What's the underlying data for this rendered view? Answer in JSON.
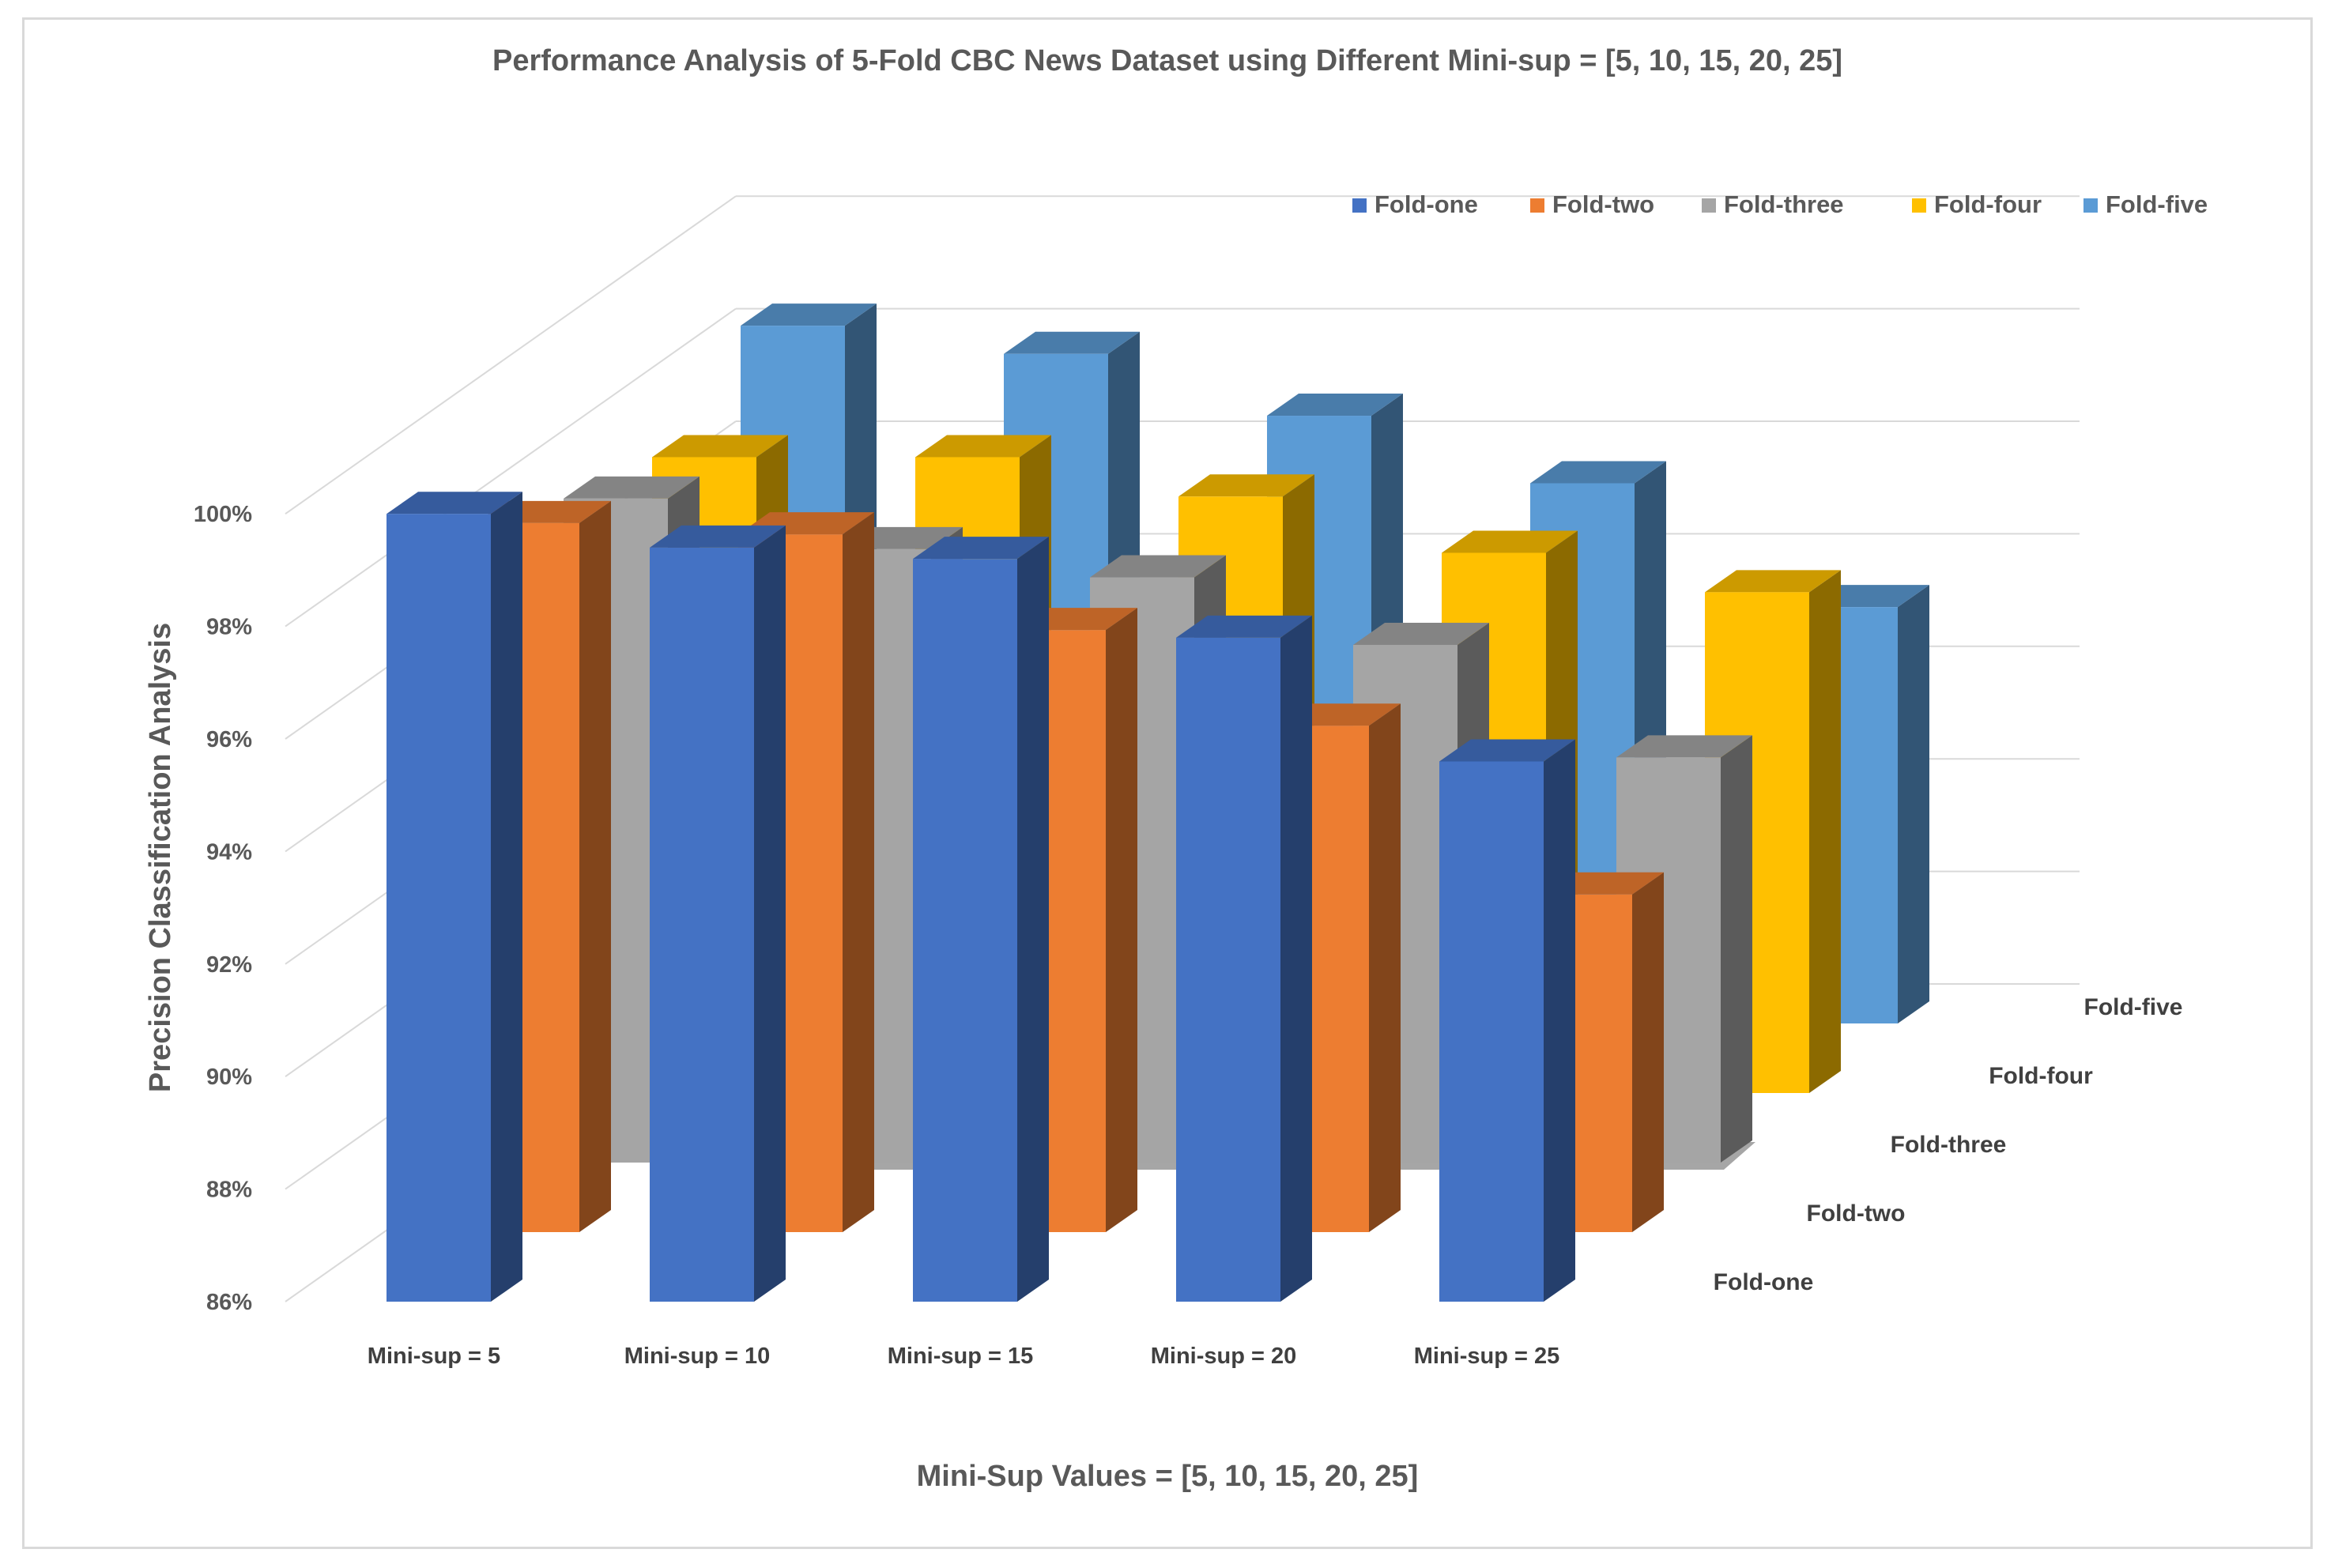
{
  "chart_data": {
    "type": "bar",
    "subtype": "3d-clustered-column",
    "title": "Performance Analysis of 5-Fold CBC News Dataset using Different Mini-sup = [5, 10, 15, 20, 25]",
    "xlabel": "Mini-Sup Values = [5, 10, 15, 20, 25]",
    "ylabel": "Precision Classification Analysis",
    "ylim": [
      86,
      100
    ],
    "yticks": [
      "86%",
      "88%",
      "90%",
      "92%",
      "94%",
      "96%",
      "98%",
      "100%"
    ],
    "categories": [
      "Mini-sup = 5",
      "Mini-sup = 10",
      "Mini-sup = 15",
      "Mini-sup = 20",
      "Mini-sup = 25"
    ],
    "depth_labels": [
      "Fold-one",
      "Fold-two",
      "Fold-three",
      "Fold-four",
      "Fold-five"
    ],
    "legend_position": "top-right",
    "series": [
      {
        "name": "Fold-one",
        "color": "#4472C4",
        "values": [
          100.0,
          99.4,
          99.2,
          97.8,
          95.6
        ]
      },
      {
        "name": "Fold-two",
        "color": "#ED7D31",
        "values": [
          98.6,
          98.4,
          96.7,
          95.0,
          92.0
        ]
      },
      {
        "name": "Fold-three",
        "color": "#A5A5A5",
        "values": [
          97.8,
          96.9,
          96.4,
          95.2,
          93.2
        ]
      },
      {
        "name": "Fold-four",
        "color": "#FFC000",
        "values": [
          97.3,
          97.3,
          96.6,
          95.6,
          94.9
        ]
      },
      {
        "name": "Fold-five",
        "color": "#5B9BD5",
        "values": [
          98.4,
          97.9,
          96.8,
          95.6,
          93.4
        ]
      }
    ]
  }
}
